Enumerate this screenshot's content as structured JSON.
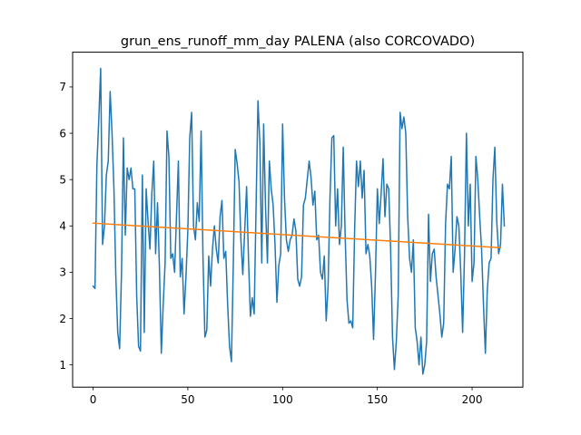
{
  "chart_data": {
    "type": "line",
    "title": "grun_ens_runoff_mm_day PALENA (also CORCOVADO)",
    "xlabel": "",
    "ylabel": "",
    "xlim": [
      -10.8,
      226.8
    ],
    "ylim": [
      0.52,
      7.75
    ],
    "x_ticks": [
      0,
      50,
      100,
      150,
      200
    ],
    "y_ticks": [
      1,
      2,
      3,
      4,
      5,
      6,
      7
    ],
    "grid": false,
    "legend": "none",
    "series": [
      {
        "color": "#1f77b4",
        "x_start": 0,
        "x_step": 1,
        "values": [
          2.7,
          2.65,
          5.3,
          6.3,
          7.4,
          3.6,
          4.0,
          5.1,
          5.4,
          6.9,
          6.0,
          4.8,
          2.9,
          1.7,
          1.35,
          3.0,
          5.9,
          3.8,
          5.25,
          5.0,
          5.25,
          4.8,
          4.8,
          2.5,
          1.4,
          1.3,
          5.1,
          1.7,
          4.8,
          4.1,
          3.5,
          4.7,
          5.4,
          3.4,
          4.5,
          3.1,
          1.25,
          2.3,
          3.2,
          6.05,
          5.5,
          3.3,
          3.4,
          3.0,
          4.2,
          5.4,
          2.9,
          3.3,
          2.1,
          2.9,
          3.9,
          5.9,
          6.45,
          4.0,
          3.7,
          4.5,
          4.1,
          6.05,
          3.3,
          1.6,
          1.75,
          3.35,
          2.7,
          3.5,
          4.0,
          3.5,
          3.2,
          4.2,
          4.55,
          3.3,
          3.45,
          2.3,
          1.4,
          1.07,
          3.2,
          5.65,
          5.35,
          4.95,
          3.7,
          2.95,
          3.9,
          4.85,
          3.3,
          2.05,
          2.45,
          2.1,
          4.4,
          6.7,
          5.8,
          3.2,
          6.2,
          4.4,
          3.2,
          5.4,
          4.8,
          4.45,
          3.6,
          2.35,
          3.15,
          3.4,
          6.2,
          4.6,
          3.7,
          3.45,
          3.7,
          3.8,
          4.15,
          3.9,
          2.85,
          2.7,
          2.9,
          4.45,
          4.6,
          5.0,
          5.4,
          5.05,
          4.45,
          4.75,
          3.7,
          3.8,
          3.0,
          2.85,
          3.35,
          1.95,
          2.7,
          4.6,
          5.9,
          5.95,
          4.0,
          4.8,
          3.6,
          4.0,
          5.7,
          3.8,
          2.4,
          1.9,
          1.95,
          1.8,
          3.9,
          5.4,
          4.85,
          5.4,
          4.6,
          5.2,
          3.4,
          3.6,
          3.35,
          2.7,
          1.55,
          2.95,
          4.8,
          4.05,
          4.7,
          5.45,
          4.2,
          4.9,
          4.8,
          3.5,
          1.6,
          0.9,
          1.5,
          2.5,
          6.45,
          6.1,
          6.35,
          6.0,
          4.2,
          3.3,
          3.0,
          3.7,
          1.8,
          1.5,
          1.0,
          1.6,
          0.8,
          1.0,
          1.5,
          4.25,
          2.8,
          3.4,
          3.5,
          2.9,
          2.5,
          2.1,
          1.6,
          1.9,
          4.05,
          4.9,
          4.8,
          5.5,
          3.0,
          3.5,
          4.2,
          4.0,
          3.0,
          1.7,
          3.4,
          6.0,
          4.0,
          4.9,
          2.8,
          3.2,
          5.5,
          5.0,
          4.2,
          3.5,
          2.3,
          1.25,
          2.6,
          3.2,
          3.3,
          5.0,
          5.7,
          4.1,
          3.4,
          3.6,
          4.9,
          4.0
        ]
      },
      {
        "color": "#ff7f0e",
        "x": [
          0,
          215
        ],
        "values": [
          4.06,
          3.53
        ]
      }
    ]
  }
}
